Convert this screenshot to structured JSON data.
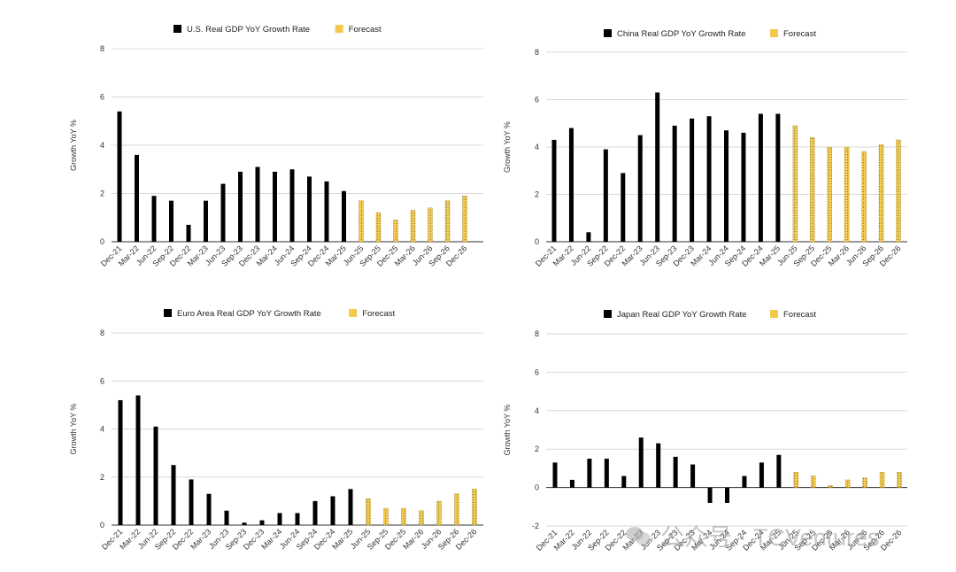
{
  "chart_data": [
    {
      "type": "bar",
      "legend": [
        {
          "label": "U.S. Real GDP YoY Growth Rate",
          "color": "#000000"
        },
        {
          "label": "Forecast",
          "color": "#F2C94C"
        }
      ],
      "ylabel": "Growth YoY %",
      "ylim": [
        0,
        8
      ],
      "yticks": [
        "0",
        "2",
        "4",
        "6",
        "8"
      ],
      "grid": true,
      "legend_position": "top",
      "categories": [
        "Dec-21",
        "Mar-22",
        "Jun-22",
        "Sep-22",
        "Dec-22",
        "Mar-23",
        "Jun-23",
        "Sep-23",
        "Dec-23",
        "Mar-24",
        "Jun-24",
        "Sep-24",
        "Dec-24",
        "Mar-25",
        "Jun-25",
        "Sep-25",
        "Dec-25",
        "Mar-26",
        "Jun-26",
        "Sep-26",
        "Dec-26"
      ],
      "series": [
        {
          "name": "U.S. Real GDP YoY Growth Rate",
          "values": [
            5.4,
            3.6,
            1.9,
            1.7,
            0.7,
            1.7,
            2.4,
            2.9,
            3.1,
            2.9,
            3.0,
            2.7,
            2.5,
            2.1,
            null,
            null,
            null,
            null,
            null,
            null,
            null
          ]
        },
        {
          "name": "Forecast",
          "values": [
            null,
            null,
            null,
            null,
            null,
            null,
            null,
            null,
            null,
            null,
            null,
            null,
            null,
            null,
            1.7,
            1.2,
            0.9,
            1.3,
            1.4,
            1.7,
            1.9
          ]
        }
      ]
    },
    {
      "type": "bar",
      "legend": [
        {
          "label": "China Real GDP YoY Growth Rate",
          "color": "#000000"
        },
        {
          "label": "Forecast",
          "color": "#F2C94C"
        }
      ],
      "ylabel": "Growth YoY %",
      "ylim": [
        0,
        8
      ],
      "yticks": [
        "0",
        "2",
        "4",
        "6",
        "8"
      ],
      "grid": true,
      "legend_position": "top",
      "categories": [
        "Dec-21",
        "Mar-22",
        "Jun-22",
        "Sep-22",
        "Dec-22",
        "Mar-23",
        "Jun-23",
        "Sep-23",
        "Dec-23",
        "Mar-24",
        "Jun-24",
        "Sep-24",
        "Dec-24",
        "Mar-25",
        "Jun-25",
        "Sep-25",
        "Dec-25",
        "Mar-26",
        "Jun-26",
        "Sep-26",
        "Dec-26"
      ],
      "series": [
        {
          "name": "China Real GDP YoY Growth Rate",
          "values": [
            4.3,
            4.8,
            0.4,
            3.9,
            2.9,
            4.5,
            6.3,
            4.9,
            5.2,
            5.3,
            4.7,
            4.6,
            5.4,
            5.4,
            null,
            null,
            null,
            null,
            null,
            null,
            null
          ]
        },
        {
          "name": "Forecast",
          "values": [
            null,
            null,
            null,
            null,
            null,
            null,
            null,
            null,
            null,
            null,
            null,
            null,
            null,
            null,
            4.9,
            4.4,
            4.0,
            4.0,
            3.8,
            4.1,
            4.3
          ]
        }
      ]
    },
    {
      "type": "bar",
      "legend": [
        {
          "label": "Euro Area Real GDP YoY Growth Rate",
          "color": "#000000"
        },
        {
          "label": "Forecast",
          "color": "#F2C94C"
        }
      ],
      "ylabel": "Growth YoY %",
      "ylim": [
        0,
        8
      ],
      "yticks": [
        "0",
        "2",
        "4",
        "6",
        "8"
      ],
      "grid": true,
      "legend_position": "top",
      "categories": [
        "Dec-21",
        "Mar-22",
        "Jun-22",
        "Sep-22",
        "Dec-22",
        "Mar-23",
        "Jun-23",
        "Sep-23",
        "Dec-23",
        "Mar-24",
        "Jun-24",
        "Sep-24",
        "Dec-24",
        "Mar-25",
        "Jun-25",
        "Sep-25",
        "Dec-25",
        "Mar-26",
        "Jun-26",
        "Sep-26",
        "Dec-26"
      ],
      "series": [
        {
          "name": "Euro Area Real GDP YoY Growth Rate",
          "values": [
            5.2,
            5.4,
            4.1,
            2.5,
            1.9,
            1.3,
            0.6,
            0.1,
            0.2,
            0.5,
            0.5,
            1.0,
            1.2,
            1.5,
            null,
            null,
            null,
            null,
            null,
            null,
            null
          ]
        },
        {
          "name": "Forecast",
          "values": [
            null,
            null,
            null,
            null,
            null,
            null,
            null,
            null,
            null,
            null,
            null,
            null,
            null,
            null,
            1.1,
            0.7,
            0.7,
            0.6,
            1.0,
            1.3,
            1.5
          ]
        }
      ]
    },
    {
      "type": "bar",
      "legend": [
        {
          "label": "Japan Real GDP YoY Growth Rate",
          "color": "#000000"
        },
        {
          "label": "Forecast",
          "color": "#F2C94C"
        }
      ],
      "ylabel": "Growth YoY %",
      "ylim": [
        -2,
        8
      ],
      "yticks": [
        "-2",
        "0",
        "2",
        "4",
        "6",
        "8"
      ],
      "grid": true,
      "legend_position": "top",
      "categories": [
        "Dec-21",
        "Mar-22",
        "Jun-22",
        "Sep-22",
        "Dec-22",
        "Mar-23",
        "Jun-23",
        "Sep-23",
        "Dec-23",
        "Mar-24",
        "Jun-24",
        "Sep-24",
        "Dec-24",
        "Mar-25",
        "Jun-25",
        "Sep-25",
        "Dec-25",
        "Mar-26",
        "Jun-26",
        "Sep-26",
        "Dec-26"
      ],
      "series": [
        {
          "name": "Japan Real GDP YoY Growth Rate",
          "values": [
            1.3,
            0.4,
            1.5,
            1.5,
            0.6,
            2.6,
            2.3,
            1.6,
            1.2,
            -0.8,
            -0.8,
            0.6,
            1.3,
            1.7,
            null,
            null,
            null,
            null,
            null,
            null,
            null
          ]
        },
        {
          "name": "Forecast",
          "values": [
            null,
            null,
            null,
            null,
            null,
            null,
            null,
            null,
            null,
            null,
            null,
            null,
            null,
            null,
            0.8,
            0.6,
            0.1,
            0.4,
            0.5,
            0.8,
            0.8
          ]
        }
      ]
    }
  ],
  "watermark": {
    "text": "公众号 · TCVentures",
    "icon": "wechat-icon"
  }
}
